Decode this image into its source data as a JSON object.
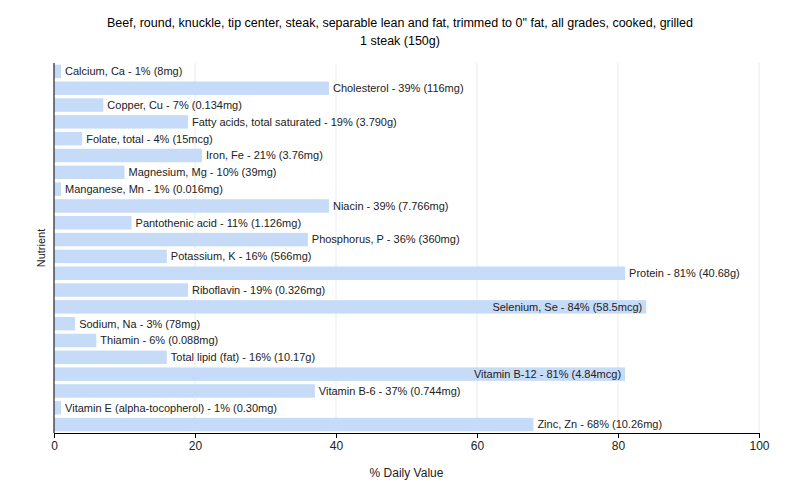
{
  "chart_data": {
    "type": "bar",
    "orientation": "horizontal",
    "title": "Beef, round, knuckle, tip center, steak, separable lean and fat, trimmed to 0\" fat, all grades, cooked, grilled",
    "subtitle": "1 steak (150g)",
    "x_label": "% Daily Value",
    "y_label": "Nutrient",
    "categories": [
      "Calcium, Ca - 1% (8mg)",
      "Cholesterol - 39% (116mg)",
      "Copper, Cu - 7% (0.134mg)",
      "Fatty acids, total saturated - 19% (3.790g)",
      "Folate, total - 4% (15mcg)",
      "Iron, Fe - 21% (3.76mg)",
      "Magnesium, Mg - 10% (39mg)",
      "Manganese, Mn - 1% (0.016mg)",
      "Niacin - 39% (7.766mg)",
      "Pantothenic acid - 11% (1.126mg)",
      "Phosphorus, P - 36% (360mg)",
      "Potassium, K - 16% (566mg)",
      "Protein - 81% (40.68g)",
      "Riboflavin - 19% (0.326mg)",
      "Selenium, Se - 84% (58.5mcg)",
      "Sodium, Na - 3% (78mg)",
      "Thiamin - 6% (0.088mg)",
      "Total lipid (fat) - 16% (10.17g)",
      "Vitamin B-12 - 81% (4.84mcg)",
      "Vitamin B-6 - 37% (0.744mg)",
      "Vitamin E (alpha-tocopherol) - 1% (0.30mg)",
      "Zinc, Zn - 68% (10.26mg)"
    ],
    "values": [
      1,
      39,
      7,
      19,
      4,
      21,
      10,
      1,
      39,
      11,
      36,
      16,
      81,
      19,
      84,
      3,
      6,
      16,
      81,
      37,
      1,
      68
    ],
    "color": "#c6dbf7",
    "xlim": [
      0,
      100
    ],
    "xticks": [
      0,
      20,
      40,
      60,
      80,
      100
    ],
    "grid": true,
    "tick_labels": "x"
  }
}
